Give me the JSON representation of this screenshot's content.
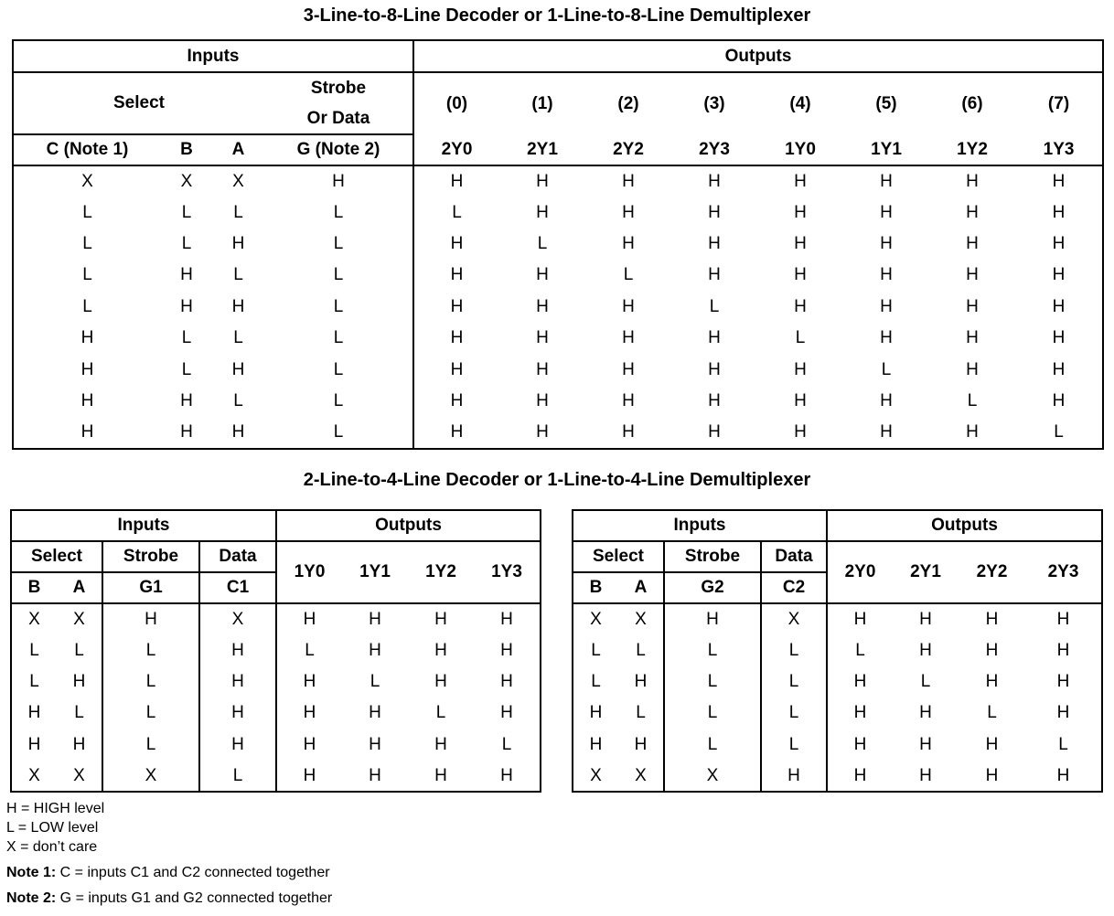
{
  "title1": "3-Line-to-8-Line Decoder or 1-Line-to-8-Line Demultiplexer",
  "title2": "2-Line-to-4-Line Decoder or 1-Line-to-4-Line Demultiplexer",
  "big": {
    "inputs": "Inputs",
    "outputs": "Outputs",
    "select": "Select",
    "strobe1": "Strobe",
    "strobe2": "Or Data",
    "indices": [
      "(0)",
      "(1)",
      "(2)",
      "(3)",
      "(4)",
      "(5)",
      "(6)",
      "(7)"
    ],
    "cols": [
      "C (Note 1)",
      "B",
      "A",
      "G (Note 2)",
      "2Y0",
      "2Y1",
      "2Y2",
      "2Y3",
      "1Y0",
      "1Y1",
      "1Y2",
      "1Y3"
    ],
    "rows": [
      [
        "X",
        "X",
        "X",
        "H",
        "H",
        "H",
        "H",
        "H",
        "H",
        "H",
        "H",
        "H"
      ],
      [
        "L",
        "L",
        "L",
        "L",
        "L",
        "H",
        "H",
        "H",
        "H",
        "H",
        "H",
        "H"
      ],
      [
        "L",
        "L",
        "H",
        "L",
        "H",
        "L",
        "H",
        "H",
        "H",
        "H",
        "H",
        "H"
      ],
      [
        "L",
        "H",
        "L",
        "L",
        "H",
        "H",
        "L",
        "H",
        "H",
        "H",
        "H",
        "H"
      ],
      [
        "L",
        "H",
        "H",
        "L",
        "H",
        "H",
        "H",
        "L",
        "H",
        "H",
        "H",
        "H"
      ],
      [
        "H",
        "L",
        "L",
        "L",
        "H",
        "H",
        "H",
        "H",
        "L",
        "H",
        "H",
        "H"
      ],
      [
        "H",
        "L",
        "H",
        "L",
        "H",
        "H",
        "H",
        "H",
        "H",
        "L",
        "H",
        "H"
      ],
      [
        "H",
        "H",
        "L",
        "L",
        "H",
        "H",
        "H",
        "H",
        "H",
        "H",
        "L",
        "H"
      ],
      [
        "H",
        "H",
        "H",
        "L",
        "H",
        "H",
        "H",
        "H",
        "H",
        "H",
        "H",
        "L"
      ]
    ]
  },
  "left": {
    "inputs": "Inputs",
    "outputs": "Outputs",
    "select": "Select",
    "strobe": "Strobe",
    "data": "Data",
    "b": "B",
    "a": "A",
    "g": "G1",
    "c": "C1",
    "outs": [
      "1Y0",
      "1Y1",
      "1Y2",
      "1Y3"
    ],
    "rows": [
      [
        "X",
        "X",
        "H",
        "X",
        "H",
        "H",
        "H",
        "H"
      ],
      [
        "L",
        "L",
        "L",
        "H",
        "L",
        "H",
        "H",
        "H"
      ],
      [
        "L",
        "H",
        "L",
        "H",
        "H",
        "L",
        "H",
        "H"
      ],
      [
        "H",
        "L",
        "L",
        "H",
        "H",
        "H",
        "L",
        "H"
      ],
      [
        "H",
        "H",
        "L",
        "H",
        "H",
        "H",
        "H",
        "L"
      ],
      [
        "X",
        "X",
        "X",
        "L",
        "H",
        "H",
        "H",
        "H"
      ]
    ]
  },
  "right": {
    "inputs": "Inputs",
    "outputs": "Outputs",
    "select": "Select",
    "strobe": "Strobe",
    "data": "Data",
    "b": "B",
    "a": "A",
    "g": "G2",
    "c": "C2",
    "outs": [
      "2Y0",
      "2Y1",
      "2Y2",
      "2Y3"
    ],
    "rows": [
      [
        "X",
        "X",
        "H",
        "X",
        "H",
        "H",
        "H",
        "H"
      ],
      [
        "L",
        "L",
        "L",
        "L",
        "L",
        "H",
        "H",
        "H"
      ],
      [
        "L",
        "H",
        "L",
        "L",
        "H",
        "L",
        "H",
        "H"
      ],
      [
        "H",
        "L",
        "L",
        "L",
        "H",
        "H",
        "L",
        "H"
      ],
      [
        "H",
        "H",
        "L",
        "L",
        "H",
        "H",
        "H",
        "L"
      ],
      [
        "X",
        "X",
        "X",
        "H",
        "H",
        "H",
        "H",
        "H"
      ]
    ]
  },
  "legend": [
    "H = HIGH level",
    "L = LOW level",
    "X = don’t care"
  ],
  "notes": [
    {
      "label": "Note 1:",
      "text": " C = inputs C1 and C2 connected together"
    },
    {
      "label": "Note 2:",
      "text": " G = inputs G1 and G2 connected together"
    }
  ]
}
